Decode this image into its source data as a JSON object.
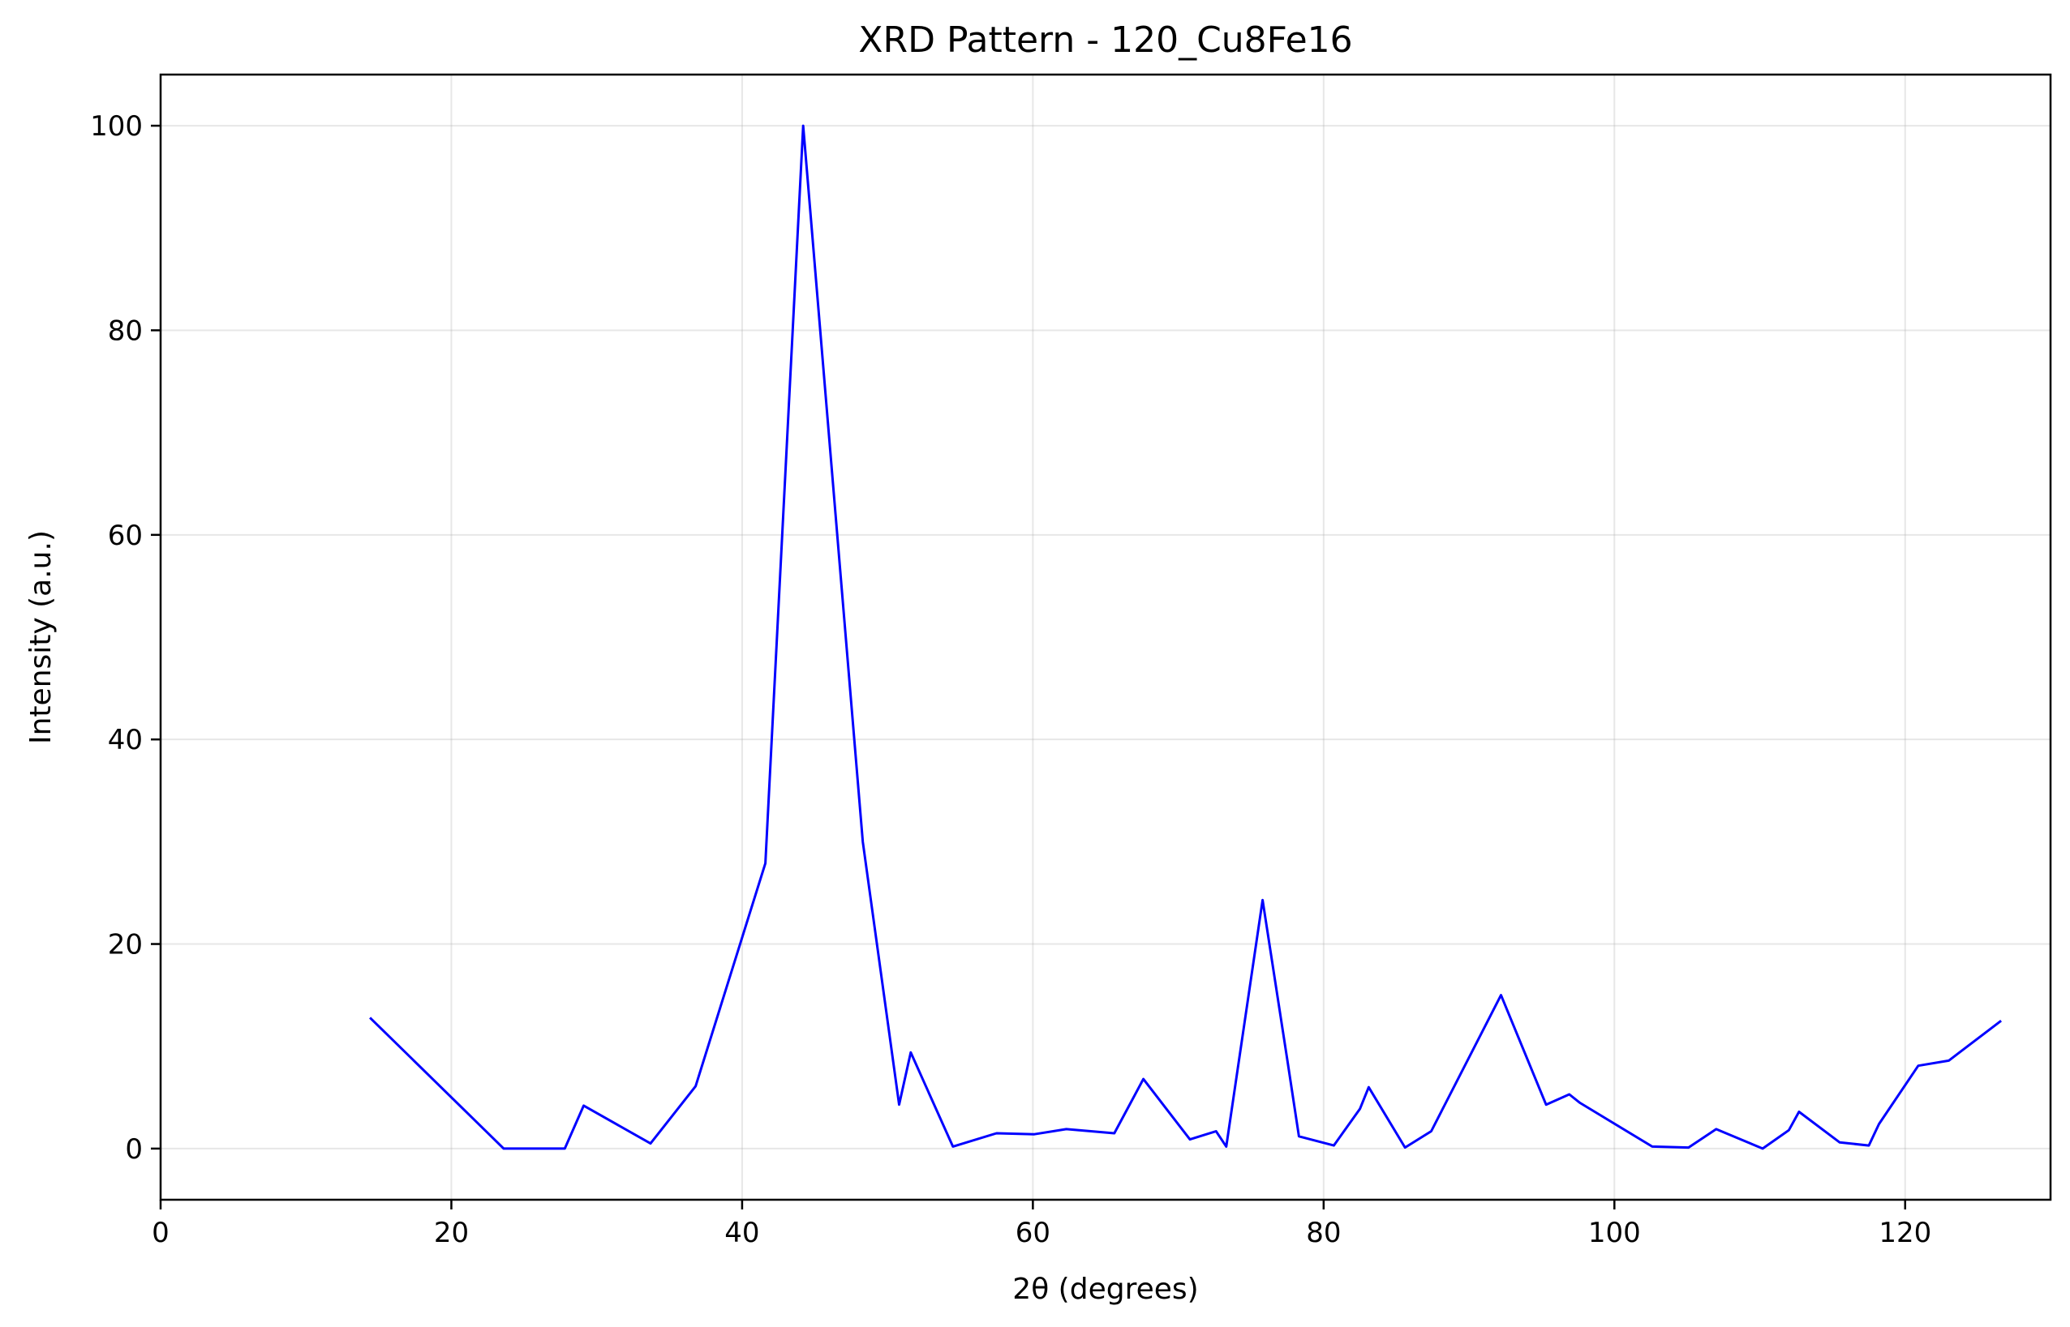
{
  "chart_data": {
    "type": "line",
    "title": "XRD Pattern - 120_Cu8Fe16",
    "xlabel": "2θ (degrees)",
    "ylabel": "Intensity (a.u.)",
    "xlim": [
      0,
      130
    ],
    "ylim": [
      -5,
      105
    ],
    "xticks": [
      0,
      20,
      40,
      60,
      80,
      100,
      120
    ],
    "yticks": [
      0,
      20,
      40,
      60,
      80,
      100
    ],
    "grid": true,
    "color": "#0000ff",
    "series": [
      {
        "x": [
          14.4,
          23.6,
          27.8,
          29.1,
          33.7,
          36.8,
          41.6,
          44.2,
          48.3,
          50.8,
          51.6,
          54.5,
          57.5,
          60.1,
          62.3,
          65.6,
          67.6,
          70.8,
          72.6,
          73.3,
          75.8,
          77.5,
          78.3,
          80.7,
          82.5,
          83.1,
          85.6,
          87.4,
          92.2,
          95.3,
          96.9,
          97.6,
          102.6,
          105.1,
          107.0,
          110.2,
          112.0,
          112.7,
          115.5,
          117.5,
          118.2,
          120.9,
          123.0,
          126.6
        ],
        "y": [
          12.8,
          0.0,
          0.0,
          4.2,
          0.5,
          6.1,
          27.9,
          100.0,
          30.0,
          4.3,
          9.4,
          0.2,
          1.5,
          1.4,
          1.9,
          1.5,
          6.8,
          0.9,
          1.7,
          0.2,
          24.3,
          8.7,
          1.2,
          0.3,
          3.9,
          6.0,
          0.1,
          1.7,
          15.0,
          4.3,
          5.3,
          4.5,
          0.2,
          0.1,
          1.9,
          0.0,
          1.8,
          3.6,
          0.6,
          0.3,
          2.4,
          8.1,
          8.6,
          12.5
        ]
      }
    ]
  }
}
